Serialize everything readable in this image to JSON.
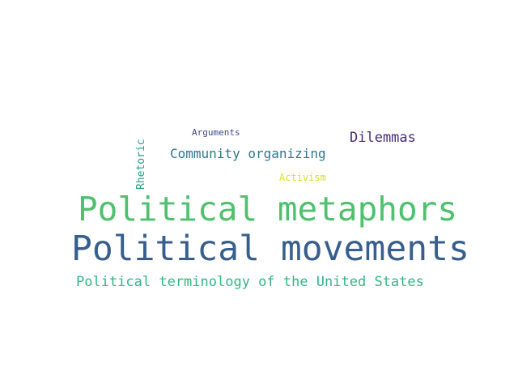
{
  "words": [
    {
      "key": "metaphors",
      "text": "Political metaphors",
      "color": "#4fc16e",
      "weight": 1.0
    },
    {
      "key": "movements",
      "text": "Political movements",
      "color": "#375f8d",
      "weight": 1.0
    },
    {
      "key": "terminology",
      "text": "Political terminology of the United States",
      "color": "#33b683",
      "weight": 0.4
    },
    {
      "key": "community",
      "text": "Community organizing",
      "color": "#2d7790",
      "weight": 0.38
    },
    {
      "key": "dilemmas",
      "text": "Dilemmas",
      "color": "#472c7a",
      "weight": 0.38
    },
    {
      "key": "rhetoric",
      "text": "Rhetoric",
      "color": "#1f9e89",
      "weight": 0.3,
      "orientation": "vertical"
    },
    {
      "key": "arguments",
      "text": "Arguments",
      "color": "#3e4a89",
      "weight": 0.25
    },
    {
      "key": "activism",
      "text": "Activism",
      "color": "#d8e219",
      "weight": 0.28
    }
  ]
}
